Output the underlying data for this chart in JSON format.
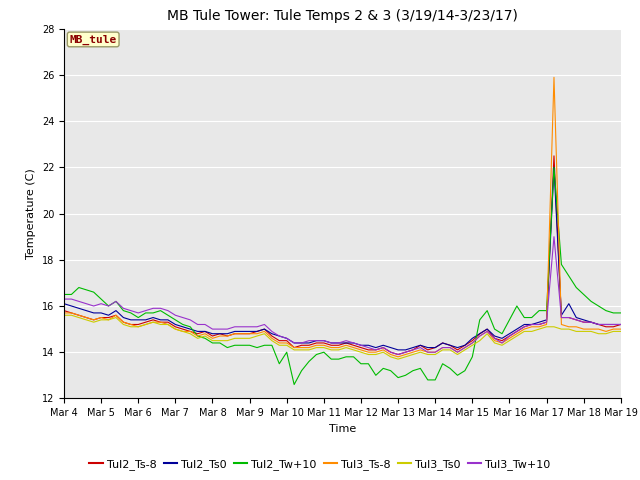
{
  "title": "MB Tule Tower: Tule Temps 2 & 3 (3/19/14-3/23/17)",
  "xlabel": "Time",
  "ylabel": "Temperature (C)",
  "ylim": [
    12,
    28
  ],
  "yticks": [
    12,
    14,
    16,
    18,
    20,
    22,
    24,
    26,
    28
  ],
  "xlim": [
    0,
    15
  ],
  "xtick_labels": [
    "Mar 4",
    "Mar 5",
    "Mar 6",
    "Mar 7",
    "Mar 8",
    "Mar 9",
    "Mar 10",
    "Mar 11",
    "Mar 12",
    "Mar 13",
    "Mar 14",
    "Mar 15",
    "Mar 16",
    "Mar 17",
    "Mar 18",
    "Mar 19"
  ],
  "annotation_text": "MB_tule",
  "annotation_color": "#8B0000",
  "annotation_bg": "#FFFFCC",
  "annotation_border": "#999966",
  "background_color": "#E8E8E8",
  "fig_bg": "#ffffff",
  "title_fontsize": 10,
  "axis_label_fontsize": 8,
  "tick_fontsize": 7,
  "legend_fontsize": 8,
  "series_order": [
    "Tul2_Ts-8",
    "Tul2_Ts0",
    "Tul2_Tw+10",
    "Tul3_Ts-8",
    "Tul3_Ts0",
    "Tul3_Tw+10"
  ],
  "series": {
    "Tul2_Ts-8": {
      "color": "#CC0000",
      "values": [
        15.8,
        15.7,
        15.6,
        15.5,
        15.4,
        15.5,
        15.5,
        15.6,
        15.3,
        15.2,
        15.2,
        15.3,
        15.4,
        15.3,
        15.3,
        15.1,
        15.0,
        14.9,
        14.8,
        14.9,
        14.7,
        14.8,
        14.7,
        14.8,
        14.8,
        14.8,
        14.9,
        15.0,
        14.7,
        14.5,
        14.5,
        14.2,
        14.3,
        14.3,
        14.4,
        14.4,
        14.3,
        14.3,
        14.4,
        14.3,
        14.2,
        14.1,
        14.1,
        14.2,
        14.0,
        13.9,
        14.0,
        14.1,
        14.3,
        14.1,
        14.2,
        14.4,
        14.3,
        14.1,
        14.3,
        14.5,
        14.8,
        15.0,
        14.6,
        14.5,
        14.7,
        14.9,
        15.1,
        15.2,
        15.2,
        15.3,
        22.5,
        15.5,
        15.5,
        15.4,
        15.3,
        15.3,
        15.2,
        15.1,
        15.1,
        15.2
      ]
    },
    "Tul2_Ts0": {
      "color": "#000099",
      "values": [
        16.1,
        16.0,
        15.9,
        15.8,
        15.7,
        15.7,
        15.6,
        15.8,
        15.5,
        15.4,
        15.4,
        15.4,
        15.5,
        15.4,
        15.4,
        15.2,
        15.1,
        15.0,
        14.9,
        14.9,
        14.8,
        14.8,
        14.8,
        14.9,
        14.9,
        14.9,
        14.9,
        15.0,
        14.8,
        14.7,
        14.6,
        14.4,
        14.4,
        14.4,
        14.5,
        14.5,
        14.4,
        14.4,
        14.4,
        14.4,
        14.3,
        14.3,
        14.2,
        14.3,
        14.2,
        14.1,
        14.1,
        14.2,
        14.3,
        14.2,
        14.2,
        14.4,
        14.3,
        14.2,
        14.3,
        14.6,
        14.8,
        15.0,
        14.7,
        14.6,
        14.8,
        15.0,
        15.2,
        15.2,
        15.3,
        15.4,
        22.0,
        15.6,
        16.1,
        15.5,
        15.4,
        15.3,
        15.2,
        15.2,
        15.2,
        15.2
      ]
    },
    "Tul2_Tw+10": {
      "color": "#00BB00",
      "values": [
        16.5,
        16.5,
        16.8,
        16.7,
        16.6,
        16.3,
        16.0,
        16.2,
        15.8,
        15.7,
        15.5,
        15.7,
        15.7,
        15.8,
        15.6,
        15.4,
        15.2,
        15.1,
        14.7,
        14.6,
        14.4,
        14.4,
        14.2,
        14.3,
        14.3,
        14.3,
        14.2,
        14.3,
        14.3,
        13.5,
        14.0,
        12.6,
        13.2,
        13.6,
        13.9,
        14.0,
        13.7,
        13.7,
        13.8,
        13.8,
        13.5,
        13.5,
        13.0,
        13.3,
        13.2,
        12.9,
        13.0,
        13.2,
        13.3,
        12.8,
        12.8,
        13.5,
        13.3,
        13.0,
        13.2,
        13.8,
        15.4,
        15.8,
        15.0,
        14.8,
        15.4,
        16.0,
        15.5,
        15.5,
        15.8,
        15.8,
        22.0,
        17.8,
        17.3,
        16.8,
        16.5,
        16.2,
        16.0,
        15.8,
        15.7,
        15.7
      ]
    },
    "Tul3_Ts-8": {
      "color": "#FF8C00",
      "values": [
        15.7,
        15.7,
        15.6,
        15.5,
        15.4,
        15.5,
        15.4,
        15.6,
        15.3,
        15.2,
        15.1,
        15.2,
        15.3,
        15.3,
        15.2,
        15.0,
        14.9,
        14.9,
        14.7,
        14.8,
        14.6,
        14.7,
        14.7,
        14.8,
        14.8,
        14.8,
        14.8,
        14.9,
        14.6,
        14.4,
        14.4,
        14.2,
        14.2,
        14.2,
        14.3,
        14.3,
        14.2,
        14.2,
        14.3,
        14.2,
        14.1,
        14.0,
        14.0,
        14.1,
        13.9,
        13.8,
        13.9,
        14.0,
        14.1,
        14.0,
        14.0,
        14.2,
        14.2,
        14.0,
        14.2,
        14.4,
        14.7,
        14.9,
        14.5,
        14.4,
        14.6,
        14.8,
        15.0,
        15.1,
        15.1,
        15.2,
        25.9,
        15.2,
        15.1,
        15.1,
        15.0,
        15.0,
        15.0,
        14.9,
        15.0,
        15.0
      ]
    },
    "Tul3_Ts0": {
      "color": "#CCCC00",
      "values": [
        15.6,
        15.6,
        15.5,
        15.4,
        15.3,
        15.4,
        15.4,
        15.5,
        15.2,
        15.1,
        15.1,
        15.2,
        15.3,
        15.2,
        15.2,
        15.0,
        14.9,
        14.8,
        14.6,
        14.7,
        14.5,
        14.5,
        14.5,
        14.6,
        14.6,
        14.6,
        14.7,
        14.8,
        14.5,
        14.3,
        14.3,
        14.1,
        14.1,
        14.1,
        14.2,
        14.2,
        14.1,
        14.1,
        14.2,
        14.1,
        14.0,
        13.9,
        13.9,
        14.0,
        13.8,
        13.7,
        13.8,
        13.9,
        14.0,
        13.9,
        13.9,
        14.1,
        14.1,
        13.9,
        14.1,
        14.3,
        14.5,
        14.8,
        14.4,
        14.3,
        14.5,
        14.7,
        14.9,
        14.9,
        15.0,
        15.1,
        15.1,
        15.0,
        15.0,
        14.9,
        14.9,
        14.9,
        14.8,
        14.8,
        14.9,
        14.9
      ]
    },
    "Tul3_Tw+10": {
      "color": "#9932CC",
      "values": [
        16.3,
        16.3,
        16.2,
        16.1,
        16.0,
        16.1,
        16.0,
        16.2,
        15.9,
        15.8,
        15.7,
        15.8,
        15.9,
        15.9,
        15.8,
        15.6,
        15.5,
        15.4,
        15.2,
        15.2,
        15.0,
        15.0,
        15.0,
        15.1,
        15.1,
        15.1,
        15.1,
        15.2,
        14.9,
        14.7,
        14.6,
        14.4,
        14.4,
        14.5,
        14.5,
        14.5,
        14.4,
        14.4,
        14.5,
        14.4,
        14.3,
        14.2,
        14.1,
        14.2,
        14.0,
        13.9,
        14.0,
        14.1,
        14.2,
        14.0,
        14.0,
        14.2,
        14.2,
        14.0,
        14.2,
        14.4,
        14.7,
        14.9,
        14.6,
        14.4,
        14.7,
        14.9,
        15.1,
        15.2,
        15.2,
        15.3,
        19.0,
        15.5,
        15.5,
        15.4,
        15.3,
        15.3,
        15.2,
        15.2,
        15.2,
        15.2
      ]
    }
  }
}
